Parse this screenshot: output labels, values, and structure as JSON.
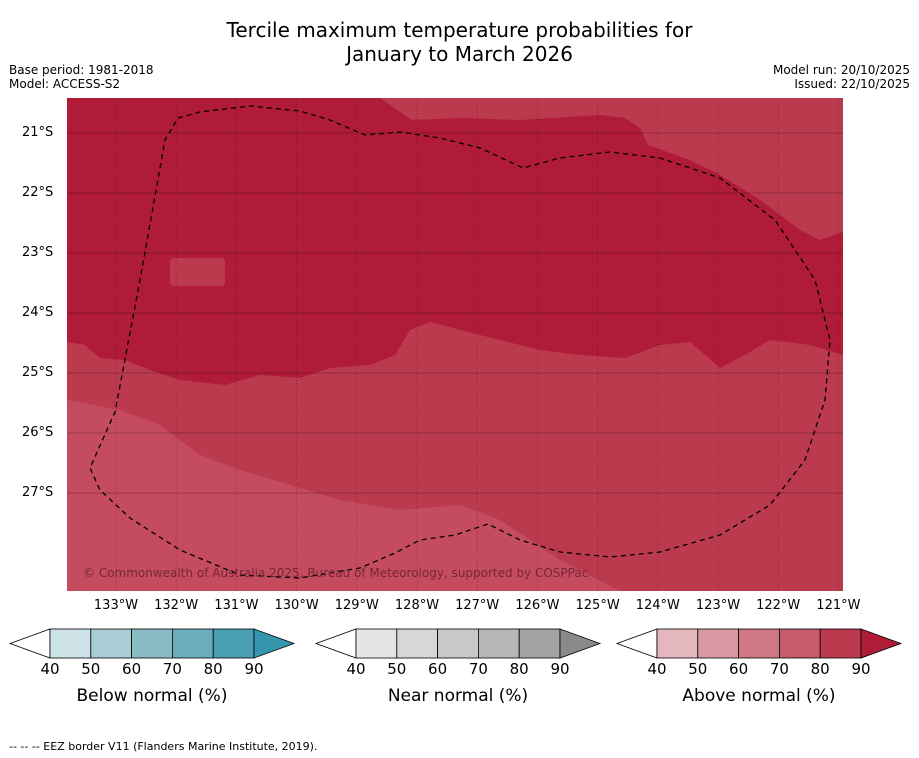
{
  "header": {
    "title_line1": "Tercile maximum temperature probabilities for",
    "title_line2": "January to March 2026",
    "base_period": "Base period: 1981-2018",
    "model": "Model: ACCESS-S2",
    "model_run": "Model run: 20/10/2025",
    "issued": "Issued: 22/10/2025"
  },
  "map": {
    "lat_labels": [
      "21°S",
      "22°S",
      "23°S",
      "24°S",
      "25°S",
      "26°S",
      "27°S"
    ],
    "lon_labels": [
      "133°W",
      "132°W",
      "131°W",
      "130°W",
      "129°W",
      "128°W",
      "127°W",
      "126°W",
      "125°W",
      "124°W",
      "123°W",
      "122°W",
      "121°W"
    ],
    "copyright": "© Commonwealth of Australia 2025, Bureau of Meteorology, supported by COSPPac",
    "colors": {
      "above_90": "#b01c38",
      "above_80": "#bc3a4e",
      "above_70": "#c44c5e"
    }
  },
  "colorbars": {
    "ticks": [
      "40",
      "50",
      "60",
      "70",
      "80",
      "90"
    ],
    "below": {
      "title": "Below normal (%)",
      "colors": [
        "#cde3e8",
        "#a8cdd4",
        "#8bbcc6",
        "#6aaebe",
        "#4aa0b3",
        "#3597ae"
      ]
    },
    "near": {
      "title": "Near normal (%)",
      "colors": [
        "#e5e5e5",
        "#d7d7d7",
        "#c8c8c8",
        "#b7b7b7",
        "#a3a3a3",
        "#8a8a8a"
      ]
    },
    "above": {
      "title": "Above normal (%)",
      "colors": [
        "#e4b7bf",
        "#d999a3",
        "#cf7883",
        "#c65b69",
        "#bc3a4e",
        "#b01c38"
      ]
    }
  },
  "footer": "--  --  -- EEZ border V11 (Flanders Marine Institute, 2019)."
}
